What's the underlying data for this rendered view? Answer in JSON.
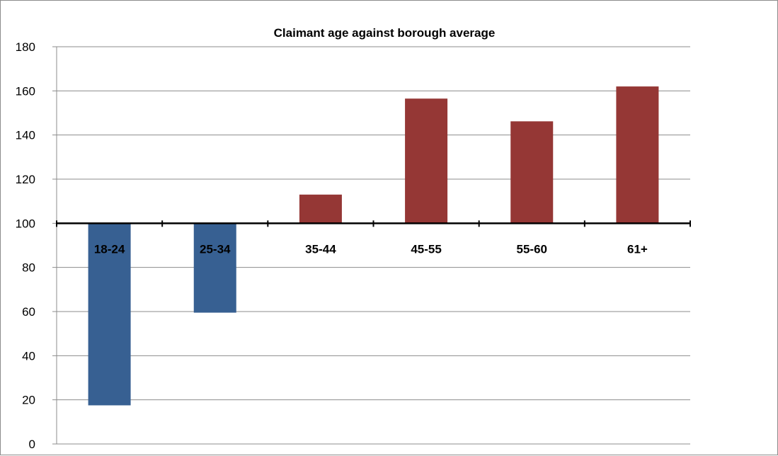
{
  "chart_data": {
    "type": "bar",
    "title": "Claimant age against borough average",
    "xlabel": "",
    "ylabel": "",
    "baseline": 100,
    "categories": [
      "18-24",
      "25-34",
      "35-44",
      "45-55",
      "55-60",
      "61+"
    ],
    "values": [
      17.5,
      59.5,
      113,
      156.5,
      146.2,
      162
    ],
    "ylim": [
      0,
      180
    ],
    "yticks": [
      "0",
      "20",
      "40",
      "60",
      "80",
      "100",
      "120",
      "140",
      "160",
      "180"
    ],
    "grid": true,
    "legend": "none",
    "colors": {
      "below_baseline": "#376092",
      "above_baseline": "#953735",
      "grid": "#8c8c8c",
      "axis": "#000000"
    }
  }
}
